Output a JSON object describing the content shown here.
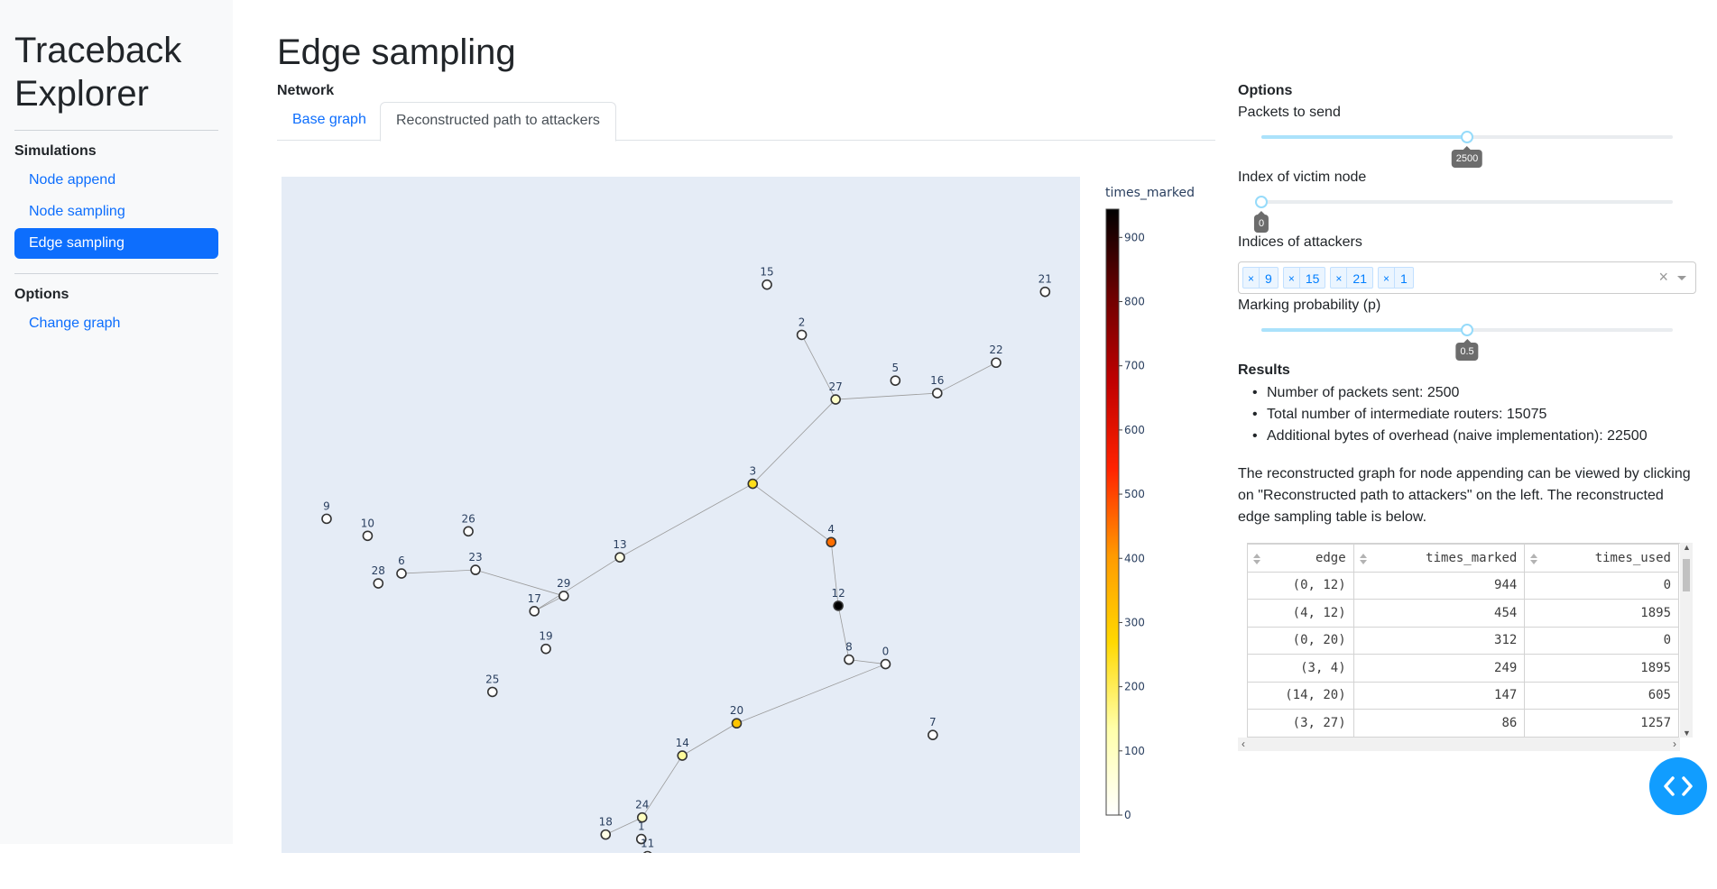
{
  "sidebar": {
    "brand": "Traceback Explorer",
    "sections": [
      {
        "heading": "Simulations",
        "items": [
          {
            "label": "Node append"
          },
          {
            "label": "Node sampling"
          },
          {
            "label": "Edge sampling",
            "active": true
          }
        ]
      },
      {
        "heading": "Options",
        "items": [
          {
            "label": "Change graph"
          }
        ]
      }
    ]
  },
  "main": {
    "title": "Edge sampling",
    "network_label": "Network",
    "tabs": [
      {
        "label": "Base graph"
      },
      {
        "label": "Reconstructed path to attackers",
        "active": true
      }
    ]
  },
  "graph": {
    "colorbar_title": "times_marked",
    "colorbar_ticks": [
      "900",
      "800",
      "700",
      "600",
      "500",
      "400",
      "300",
      "200",
      "100",
      "0"
    ],
    "colorscale": [
      "#ffffff",
      "#ffffaa",
      "#ffd800",
      "#ff9a00",
      "#ff2300",
      "#c00000",
      "#6d0000",
      "#000000"
    ],
    "cmax": 944,
    "nodes": [
      {
        "id": "0",
        "v": 0
      },
      {
        "id": "1",
        "v": 0
      },
      {
        "id": "2",
        "v": 0
      },
      {
        "id": "3",
        "v": 249
      },
      {
        "id": "4",
        "v": 454
      },
      {
        "id": "5",
        "v": 0
      },
      {
        "id": "6",
        "v": 0
      },
      {
        "id": "7",
        "v": 0
      },
      {
        "id": "8",
        "v": 0
      },
      {
        "id": "9",
        "v": 0
      },
      {
        "id": "10",
        "v": 0
      },
      {
        "id": "11",
        "v": 0
      },
      {
        "id": "12",
        "v": 944
      },
      {
        "id": "13",
        "v": 40
      },
      {
        "id": "14",
        "v": 147
      },
      {
        "id": "15",
        "v": 0
      },
      {
        "id": "16",
        "v": 0
      },
      {
        "id": "17",
        "v": 0
      },
      {
        "id": "18",
        "v": 40
      },
      {
        "id": "19",
        "v": 0
      },
      {
        "id": "20",
        "v": 312
      },
      {
        "id": "21",
        "v": 0
      },
      {
        "id": "22",
        "v": 0
      },
      {
        "id": "23",
        "v": 0
      },
      {
        "id": "24",
        "v": 100
      },
      {
        "id": "25",
        "v": 0
      },
      {
        "id": "26",
        "v": 0
      },
      {
        "id": "27",
        "v": 86
      },
      {
        "id": "28",
        "v": 0
      },
      {
        "id": "29",
        "v": 0
      }
    ],
    "edges": [
      [
        "2",
        "27"
      ],
      [
        "27",
        "16"
      ],
      [
        "16",
        "22"
      ],
      [
        "27",
        "3"
      ],
      [
        "3",
        "4"
      ],
      [
        "4",
        "12"
      ],
      [
        "12",
        "8"
      ],
      [
        "8",
        "0"
      ],
      [
        "0",
        "20"
      ],
      [
        "20",
        "14"
      ],
      [
        "14",
        "24"
      ],
      [
        "24",
        "18"
      ],
      [
        "3",
        "13"
      ],
      [
        "13",
        "17"
      ],
      [
        "17",
        "29"
      ],
      [
        "29",
        "23"
      ],
      [
        "23",
        "6"
      ]
    ]
  },
  "options": {
    "heading": "Options",
    "packets_label": "Packets to send",
    "packets_value": "2500",
    "packets_fraction": 0.5,
    "victim_label": "Index of victim node",
    "victim_value": "0",
    "victim_fraction": 0,
    "attackers_label": "Indices of attackers",
    "attackers": [
      "9",
      "15",
      "21",
      "1"
    ],
    "clear_symbol": "×",
    "prob_label": "Marking probability (p)",
    "prob_value": "0.5",
    "prob_fraction": 0.5
  },
  "results": {
    "heading": "Results",
    "items": [
      "Number of packets sent: 2500",
      "Total number of intermediate routers: 15075",
      "Additional bytes of overhead (naive implementation): 22500"
    ],
    "paragraph": "The reconstructed graph for node appending can be viewed by clicking on \"Reconstructed path to attackers\" on the left. The reconstructed edge sampling table is below."
  },
  "table": {
    "columns": [
      "edge",
      "times_marked",
      "times_used"
    ],
    "rows": [
      [
        "(0, 12)",
        "944",
        "0"
      ],
      [
        "(4, 12)",
        "454",
        "1895"
      ],
      [
        "(0, 20)",
        "312",
        "0"
      ],
      [
        "(3, 4)",
        "249",
        "1895"
      ],
      [
        "(14, 20)",
        "147",
        "605"
      ],
      [
        "(3, 27)",
        "86",
        "1257"
      ]
    ]
  }
}
